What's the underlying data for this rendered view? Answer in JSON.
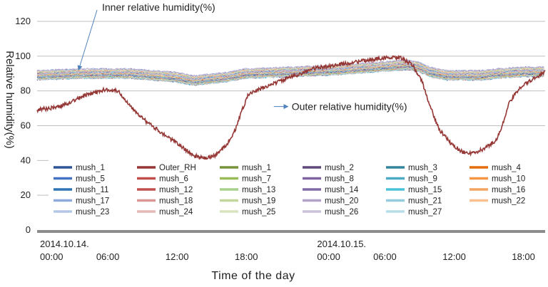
{
  "chart_data": {
    "type": "line",
    "xlabel": "Time of the day",
    "ylabel": "Relative humidity(%)",
    "ylim": [
      0,
      120
    ],
    "yticks": [
      0,
      20,
      40,
      60,
      80,
      100,
      120
    ],
    "xlim": [
      0,
      44
    ],
    "x_unit": "hours since 2014.10.14. 00:00",
    "grid": "horizontal",
    "x_ticks": [
      {
        "x": 0,
        "line1": "2014.10.14.",
        "line2": "00:00"
      },
      {
        "x": 6,
        "line1": "",
        "line2": "06:00"
      },
      {
        "x": 12,
        "line1": "",
        "line2": "12:00"
      },
      {
        "x": 18,
        "line1": "",
        "line2": "18:00"
      },
      {
        "x": 24,
        "line1": "2014.10.15.",
        "line2": "00:00"
      },
      {
        "x": 30,
        "line1": "",
        "line2": "06:00"
      },
      {
        "x": 36,
        "line1": "",
        "line2": "12:00"
      },
      {
        "x": 42,
        "line1": "",
        "line2": "18:00"
      }
    ],
    "annotations": [
      {
        "text": "Inner relative humidity(%)",
        "arrow_to": {
          "x": 0.5,
          "y": 92
        }
      },
      {
        "text": "Outer relative humidity(%)",
        "arrow_from": {
          "x": 20.5,
          "y": 71
        }
      }
    ],
    "outer_series": {
      "name": "Outer_RH",
      "color": "#953735",
      "points": [
        [
          0,
          69
        ],
        [
          2,
          71
        ],
        [
          4,
          77
        ],
        [
          6,
          81
        ],
        [
          7,
          80
        ],
        [
          8,
          72
        ],
        [
          9.5,
          62
        ],
        [
          11,
          55
        ],
        [
          12.5,
          48
        ],
        [
          13.5,
          43
        ],
        [
          14.5,
          41
        ],
        [
          15.5,
          43
        ],
        [
          16.5,
          50
        ],
        [
          17.2,
          58
        ],
        [
          17.8,
          70
        ],
        [
          18.3,
          78
        ],
        [
          20,
          83
        ],
        [
          22,
          88
        ],
        [
          24,
          93
        ],
        [
          26,
          95
        ],
        [
          28,
          97
        ],
        [
          30,
          99
        ],
        [
          31.5,
          99
        ],
        [
          32.5,
          95
        ],
        [
          33.3,
          86
        ],
        [
          34,
          72
        ],
        [
          34.8,
          58
        ],
        [
          35.8,
          50
        ],
        [
          36.8,
          45
        ],
        [
          37.8,
          44
        ],
        [
          38.8,
          47
        ],
        [
          39.8,
          52
        ],
        [
          40.3,
          60
        ],
        [
          40.8,
          72
        ],
        [
          41.8,
          82
        ],
        [
          43,
          87
        ],
        [
          44,
          91
        ]
      ]
    },
    "inner_band": {
      "name": "mush_1 … mush_27",
      "points": [
        [
          0,
          89
        ],
        [
          4,
          90
        ],
        [
          8,
          90
        ],
        [
          10,
          89
        ],
        [
          12,
          88
        ],
        [
          13.5,
          86
        ],
        [
          15,
          87
        ],
        [
          16.5,
          88
        ],
        [
          18,
          90
        ],
        [
          22,
          91
        ],
        [
          26,
          92
        ],
        [
          30,
          94
        ],
        [
          32,
          95
        ],
        [
          33,
          94
        ],
        [
          34,
          91
        ],
        [
          35.5,
          89
        ],
        [
          37,
          89
        ],
        [
          38.5,
          89
        ],
        [
          40,
          90
        ],
        [
          42,
          91
        ],
        [
          44,
          91
        ]
      ],
      "spread": 2.5
    },
    "legend": [
      {
        "name": "mush_1",
        "color": "#2F5597"
      },
      {
        "name": "Outer_RH",
        "color": "#953735"
      },
      {
        "name": "mush_1",
        "color": "#77933C"
      },
      {
        "name": "mush_2",
        "color": "#604A7B"
      },
      {
        "name": "mush_3",
        "color": "#31859C"
      },
      {
        "name": "mush_4",
        "color": "#E46C0A"
      },
      {
        "name": "mush_5",
        "color": "#4472C4"
      },
      {
        "name": "mush_6",
        "color": "#C0504D"
      },
      {
        "name": "mush_7",
        "color": "#9BBB59"
      },
      {
        "name": "mush_8",
        "color": "#8064A2"
      },
      {
        "name": "mush_9",
        "color": "#4BACC6"
      },
      {
        "name": "mush_10",
        "color": "#F79646"
      },
      {
        "name": "mush_11",
        "color": "#2E75B6"
      },
      {
        "name": "mush_12",
        "color": "#C0504D"
      },
      {
        "name": "mush_13",
        "color": "#A9D18E"
      },
      {
        "name": "mush_14",
        "color": "#7F6AA6"
      },
      {
        "name": "mush_15",
        "color": "#4BC0D9"
      },
      {
        "name": "mush_16",
        "color": "#F4A460"
      },
      {
        "name": "mush_17",
        "color": "#8EA9DB"
      },
      {
        "name": "mush_18",
        "color": "#D99694"
      },
      {
        "name": "mush_19",
        "color": "#C3D69B"
      },
      {
        "name": "mush_20",
        "color": "#B3A2C7"
      },
      {
        "name": "mush_21",
        "color": "#93CDDD"
      },
      {
        "name": "mush_22",
        "color": "#FAC090"
      },
      {
        "name": "mush_23",
        "color": "#B4C7E7"
      },
      {
        "name": "mush_24",
        "color": "#E6B9B8"
      },
      {
        "name": "mush_25",
        "color": "#D7E4BD"
      },
      {
        "name": "mush_26",
        "color": "#CCC1DA"
      },
      {
        "name": "mush_27",
        "color": "#B7DEE8"
      }
    ]
  }
}
